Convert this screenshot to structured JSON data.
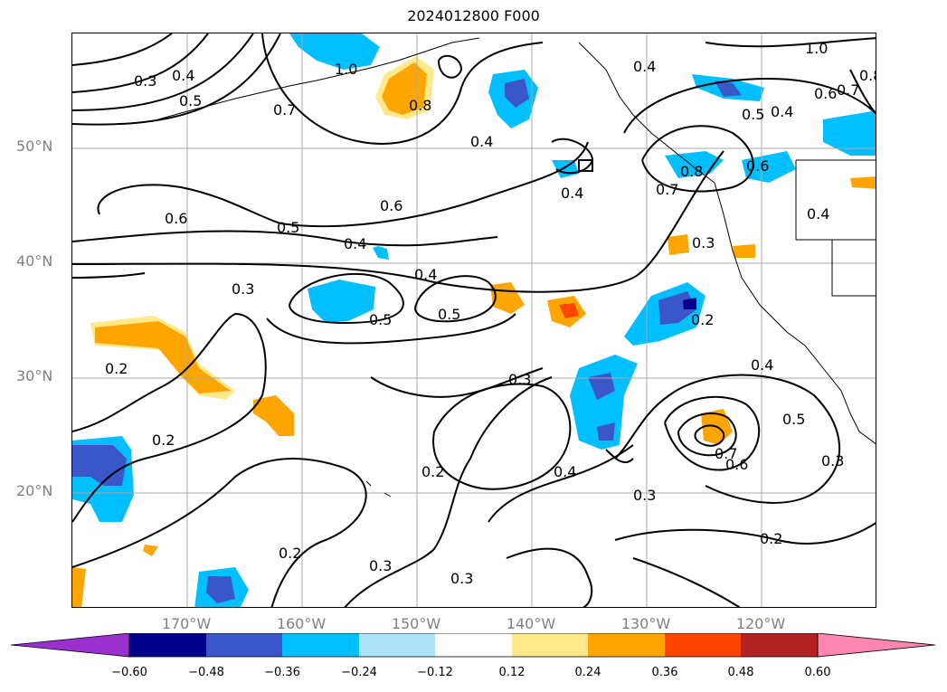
{
  "title": "2024012800 F000",
  "lat_labels": [
    "50°N",
    "40°N",
    "30°N",
    "20°N"
  ],
  "lon_labels": [
    "170°W",
    "160°W",
    "150°W",
    "140°W",
    "130°W",
    "120°W"
  ],
  "colorbar": {
    "ticks": [
      "-0.60",
      "-0.48",
      "-0.36",
      "-0.24",
      "-0.12",
      "0.12",
      "0.24",
      "0.36",
      "0.48",
      "0.60"
    ],
    "colors": [
      "#9b30d0",
      "#00008b",
      "#3a56c9",
      "#00bfff",
      "#aee3fa",
      "#ffffff",
      "#ffe98a",
      "#ffa500",
      "#ff4500",
      "#b22222",
      "#ff86b0"
    ]
  },
  "contour_labels": [
    "0.3",
    "0.4",
    "0.5",
    "0.7",
    "1.0",
    "0.8",
    "0.4",
    "0.4",
    "0.4",
    "1.0",
    "0.6",
    "0.7",
    "0.8",
    "0.5",
    "0.4",
    "0.6",
    "0.8",
    "0.7",
    "0.4",
    "0.6",
    "0.6",
    "0.5",
    "0.4",
    "0.4",
    "0.3",
    "0.3",
    "0.5",
    "0.5",
    "0.2",
    "0.3",
    "0.2",
    "0.4",
    "0.5",
    "0.3",
    "0.2",
    "0.2",
    "0.2",
    "0.3",
    "0.4",
    "0.3",
    "0.7",
    "0.6",
    "0.3",
    "0.2"
  ],
  "chart_data": {
    "type": "contour-map",
    "title": "2024012800 F000",
    "lon_range": [
      -180,
      -110
    ],
    "lat_range": [
      10,
      60
    ],
    "gridlines": true,
    "shading_levels": [
      -0.6,
      -0.48,
      -0.36,
      -0.24,
      -0.12,
      0.12,
      0.24,
      0.36,
      0.48,
      0.6
    ],
    "contour_values": [
      0.2,
      0.3,
      0.4,
      0.5,
      0.6,
      0.7,
      0.8,
      1.0
    ],
    "colorbar_position": "bottom"
  }
}
